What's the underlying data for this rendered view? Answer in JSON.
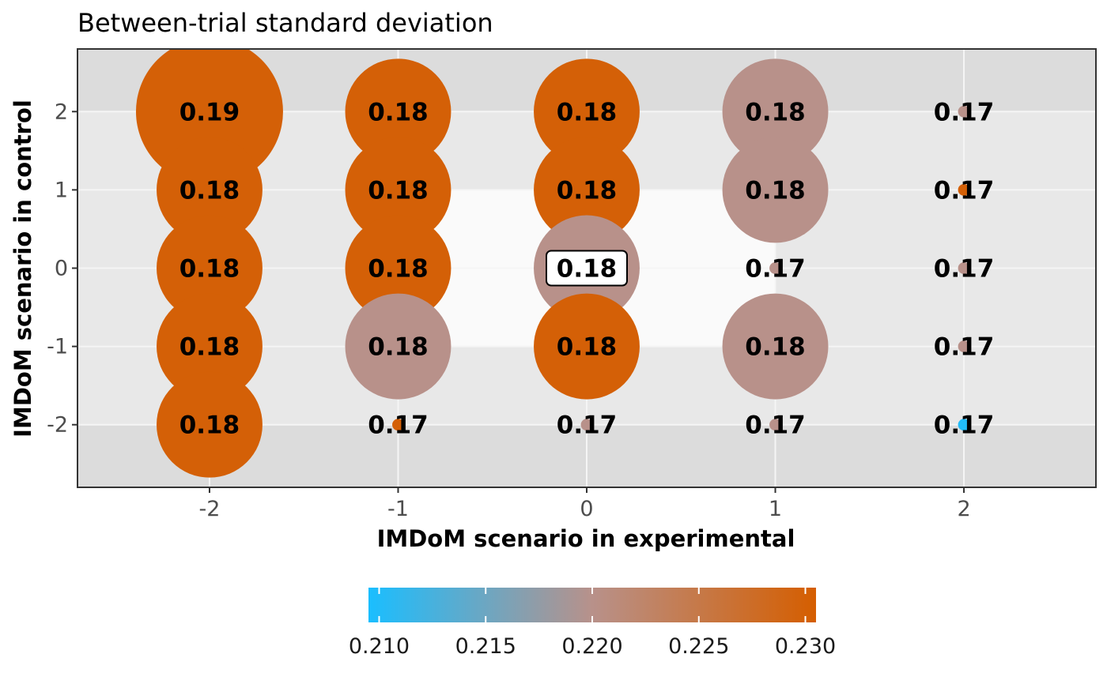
{
  "chart_data": {
    "type": "scatter",
    "title": "Between-trial standard deviation",
    "xlabel": "IMDoM scenario in experimental",
    "ylabel": "IMDoM scenario in control",
    "x_ticks": [
      "-2",
      "-1",
      "0",
      "1",
      "2"
    ],
    "y_ticks": [
      "2",
      "1",
      "0",
      "-1",
      "-2"
    ],
    "xlim": [
      -2.7,
      2.7
    ],
    "ylim": [
      -2.8,
      2.8
    ],
    "colors": {
      "low": "#1ABEFF",
      "mid": "#B8918A",
      "high": "#D55E00",
      "panel_outer": "#DCDCDC",
      "panel_mid": "#E8E8E8",
      "panel_inner": "#FAFAFA",
      "grid": "#F5F5F5"
    },
    "background_regions": [
      {
        "level": "outer",
        "x": [
          -2.7,
          2.7
        ],
        "y": [
          -2.8,
          2.8
        ]
      },
      {
        "level": "mid",
        "x": [
          -2.7,
          2.7
        ],
        "y": [
          -2.0,
          2.0
        ]
      },
      {
        "level": "inner",
        "x": [
          -1.0,
          1.0
        ],
        "y": [
          -1.0,
          1.0
        ]
      }
    ],
    "points": [
      {
        "x": -2,
        "y": 2,
        "label": "0.19",
        "size": 1.0,
        "color_value": 0.23
      },
      {
        "x": -1,
        "y": 2,
        "label": "0.18",
        "size": 0.72,
        "color_value": 0.23
      },
      {
        "x": 0,
        "y": 2,
        "label": "0.18",
        "size": 0.72,
        "color_value": 0.23
      },
      {
        "x": 1,
        "y": 2,
        "label": "0.18",
        "size": 0.72,
        "color_value": 0.22
      },
      {
        "x": 2,
        "y": 2,
        "label": "0.17",
        "size": 0.08,
        "color_value": 0.22
      },
      {
        "x": -2,
        "y": 1,
        "label": "0.18",
        "size": 0.72,
        "color_value": 0.23
      },
      {
        "x": -1,
        "y": 1,
        "label": "0.18",
        "size": 0.72,
        "color_value": 0.23
      },
      {
        "x": 0,
        "y": 1,
        "label": "0.18",
        "size": 0.72,
        "color_value": 0.23
      },
      {
        "x": 1,
        "y": 1,
        "label": "0.18",
        "size": 0.72,
        "color_value": 0.22
      },
      {
        "x": 2,
        "y": 1,
        "label": "0.17",
        "size": 0.08,
        "color_value": 0.23
      },
      {
        "x": -2,
        "y": 0,
        "label": "0.18",
        "size": 0.72,
        "color_value": 0.23
      },
      {
        "x": -1,
        "y": 0,
        "label": "0.18",
        "size": 0.72,
        "color_value": 0.23
      },
      {
        "x": 0,
        "y": 0,
        "label": "0.18",
        "size": 0.72,
        "color_value": 0.22,
        "boxed": true
      },
      {
        "x": 1,
        "y": 0,
        "label": "0.17",
        "size": 0.08,
        "color_value": 0.22
      },
      {
        "x": 2,
        "y": 0,
        "label": "0.17",
        "size": 0.08,
        "color_value": 0.22
      },
      {
        "x": -2,
        "y": -1,
        "label": "0.18",
        "size": 0.72,
        "color_value": 0.23
      },
      {
        "x": -1,
        "y": -1,
        "label": "0.18",
        "size": 0.72,
        "color_value": 0.22
      },
      {
        "x": 0,
        "y": -1,
        "label": "0.18",
        "size": 0.72,
        "color_value": 0.23
      },
      {
        "x": 1,
        "y": -1,
        "label": "0.18",
        "size": 0.72,
        "color_value": 0.22
      },
      {
        "x": 2,
        "y": -1,
        "label": "0.17",
        "size": 0.08,
        "color_value": 0.22
      },
      {
        "x": -2,
        "y": -2,
        "label": "0.18",
        "size": 0.72,
        "color_value": 0.23
      },
      {
        "x": -1,
        "y": -2,
        "label": "0.17",
        "size": 0.08,
        "color_value": 0.23
      },
      {
        "x": 0,
        "y": -2,
        "label": "0.17",
        "size": 0.08,
        "color_value": 0.22
      },
      {
        "x": 1,
        "y": -2,
        "label": "0.17",
        "size": 0.08,
        "color_value": 0.22
      },
      {
        "x": 2,
        "y": -2,
        "label": "0.17",
        "size": 0.08,
        "color_value": 0.21
      }
    ],
    "legend": {
      "placement": "bottom",
      "type": "colorbar",
      "range": [
        0.2095,
        0.2305
      ],
      "ticks": [
        "0.210",
        "0.215",
        "0.220",
        "0.225",
        "0.230"
      ]
    }
  }
}
